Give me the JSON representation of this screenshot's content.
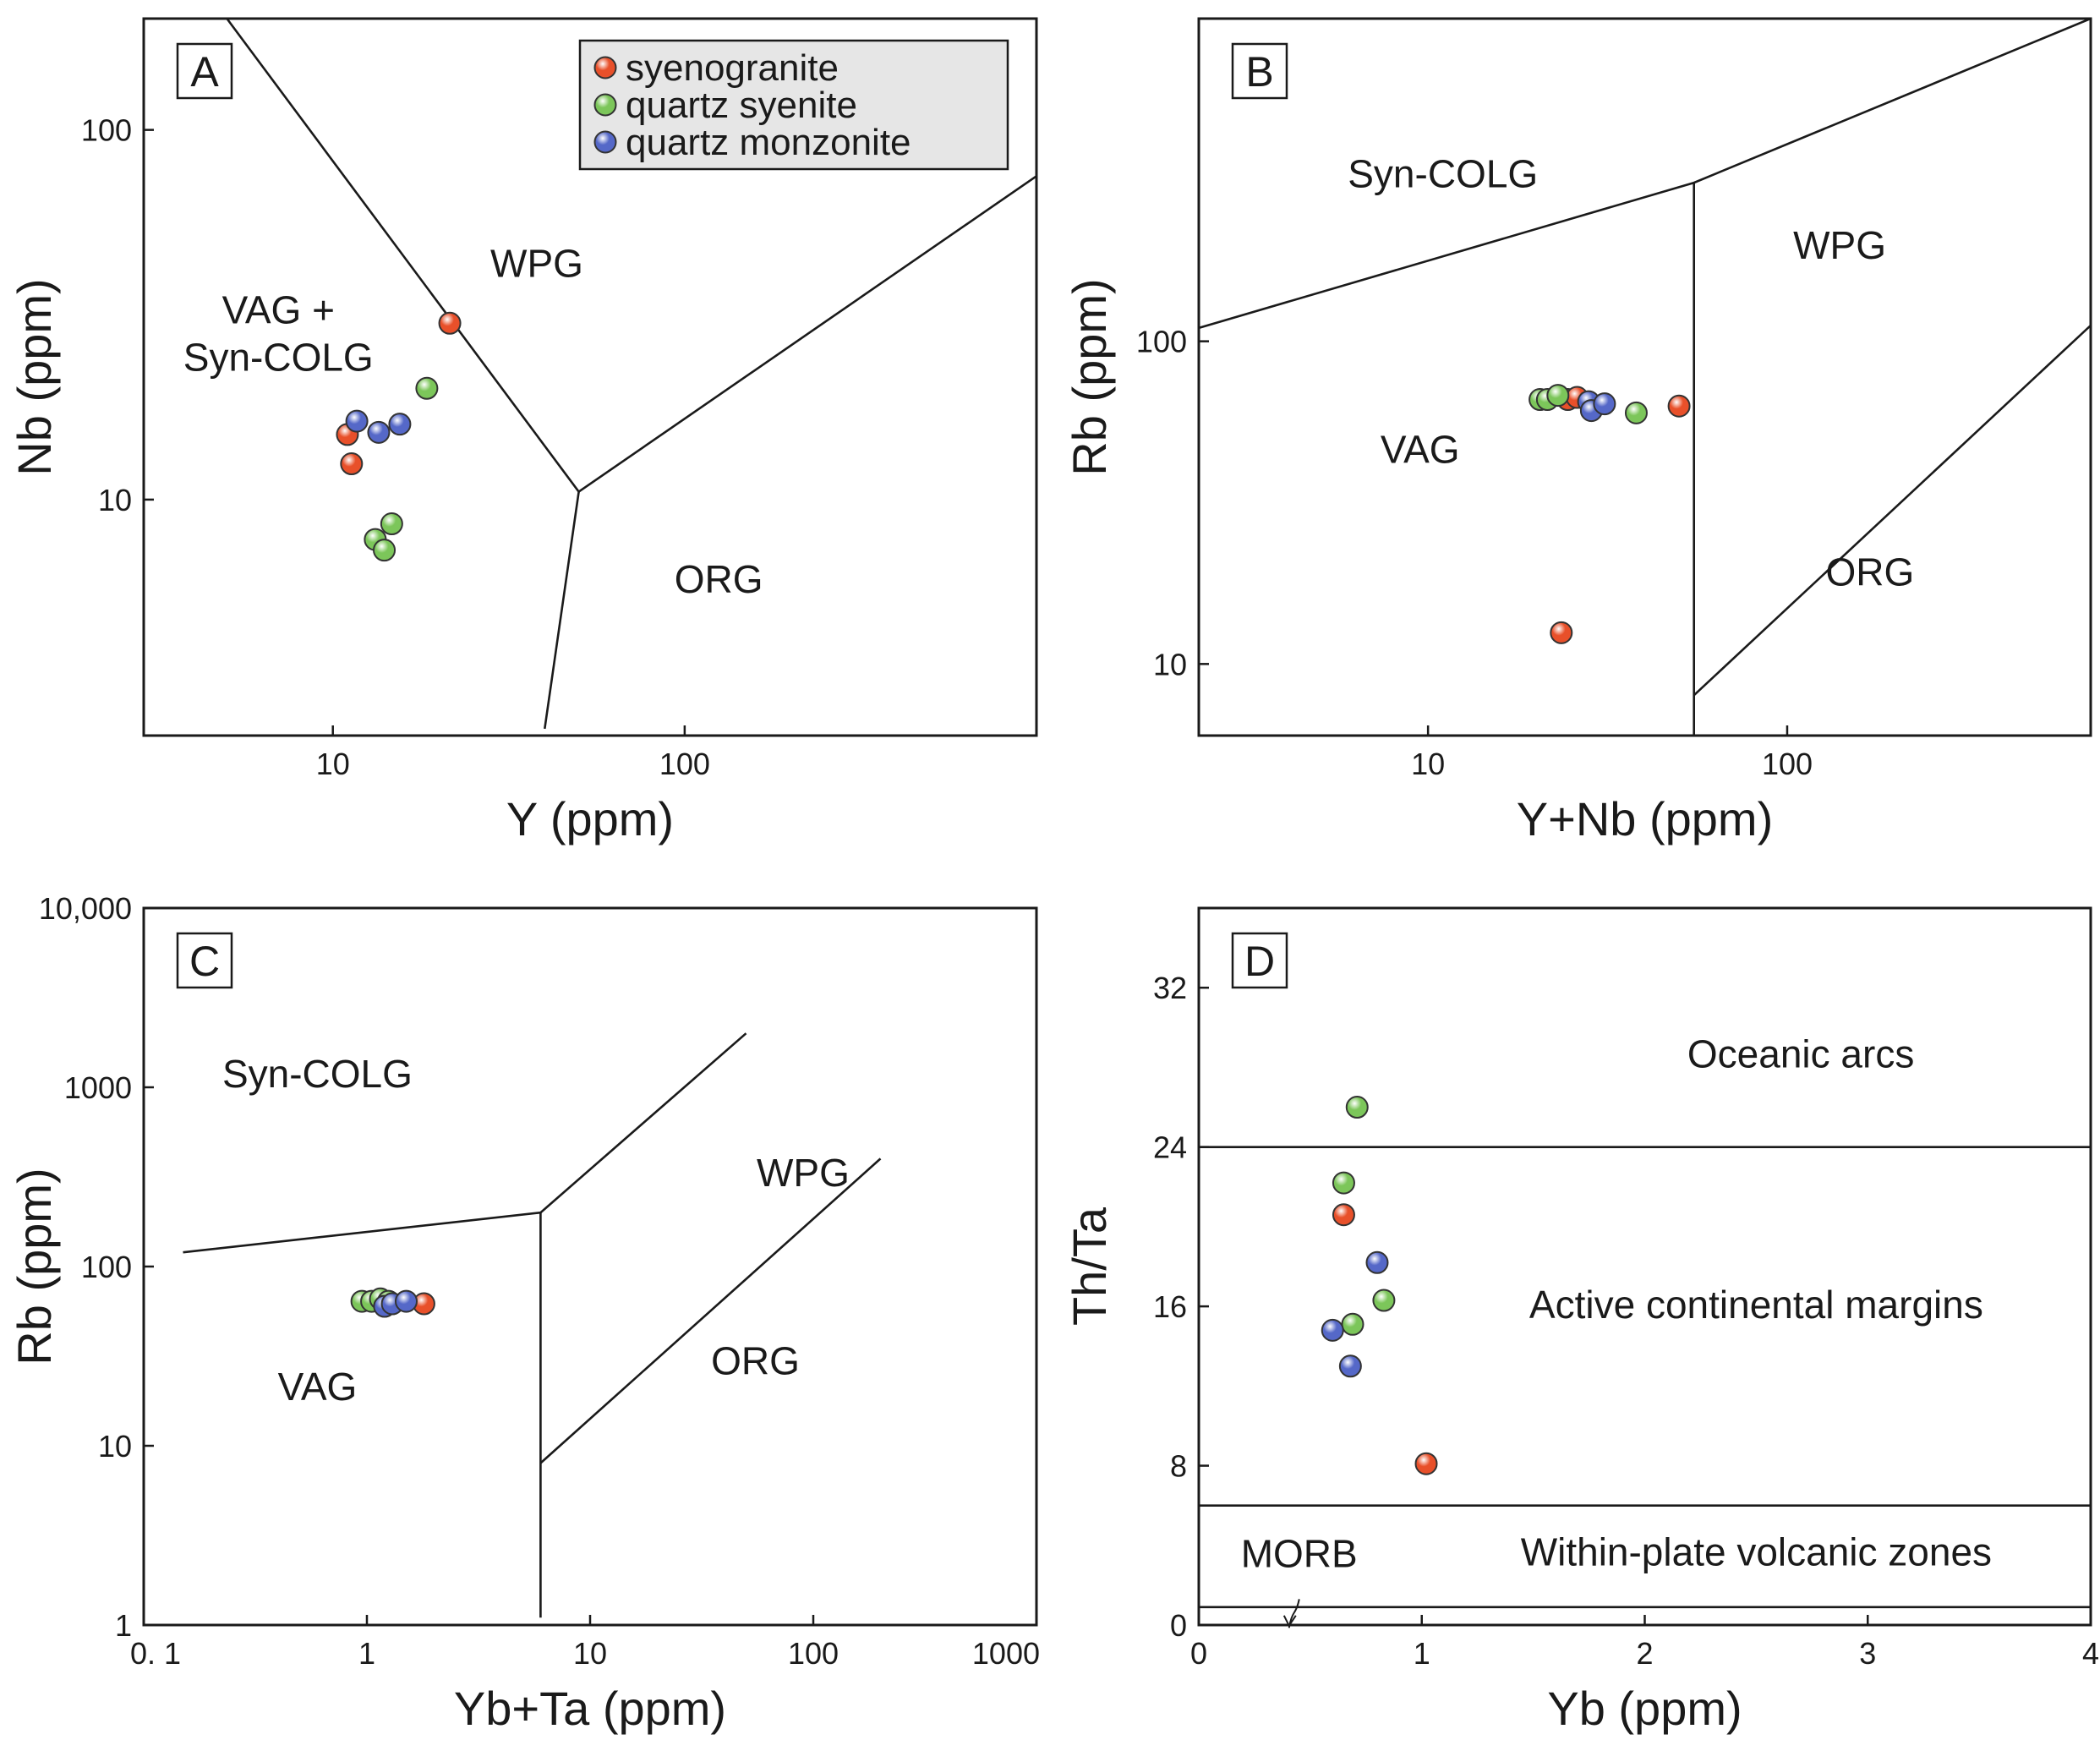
{
  "legend": [
    {
      "label": "syenogranite",
      "color": "#e8502a"
    },
    {
      "label": "quartz syenite",
      "color": "#7cc65a"
    },
    {
      "label": "quartz monzonite",
      "color": "#5568c8"
    }
  ],
  "chart_data": [
    {
      "type": "scatter",
      "panel": "A",
      "xlabel": "Y (ppm)",
      "ylabel": "Nb (ppm)",
      "xscale": "log",
      "yscale": "log",
      "xlim": [
        2.9,
        1000
      ],
      "ylim": [
        2.3,
        200
      ],
      "xticks": [
        {
          "v": 10,
          "label": "10"
        },
        {
          "v": 100,
          "label": "100"
        }
      ],
      "yticks": [
        {
          "v": 10,
          "label": "10"
        },
        {
          "v": 100,
          "label": "100"
        }
      ],
      "regions": [
        {
          "lines": [
            "VAG +",
            "Syn-COLG"
          ],
          "x": 7,
          "y": 30
        },
        {
          "lines": [
            "WPG"
          ],
          "x": 38,
          "y": 40
        },
        {
          "lines": [
            "ORG"
          ],
          "x": 125,
          "y": 5.6
        }
      ],
      "boundaries": [
        [
          [
            5,
            200
          ],
          [
            50,
            10.5
          ],
          [
            40,
            2.4
          ]
        ],
        [
          [
            50,
            10.5
          ],
          [
            1000,
            75
          ]
        ]
      ],
      "series": [
        {
          "name": "syenogranite",
          "points": [
            [
              11,
              15
            ],
            [
              11.3,
              12.5
            ],
            [
              21.5,
              30
            ]
          ]
        },
        {
          "name": "quartz syenite",
          "points": [
            [
              13.2,
              7.8
            ],
            [
              14,
              7.3
            ],
            [
              14.7,
              8.6
            ],
            [
              18.5,
              20
            ]
          ]
        },
        {
          "name": "quartz monzonite",
          "points": [
            [
              11.7,
              16.3
            ],
            [
              13.5,
              15.2
            ],
            [
              15.5,
              16
            ]
          ]
        }
      ]
    },
    {
      "type": "scatter",
      "panel": "B",
      "xlabel": "Y+Nb (ppm)",
      "ylabel": "Rb (ppm)",
      "xscale": "log",
      "yscale": "log",
      "xlim": [
        2.3,
        700
      ],
      "ylim": [
        6,
        1000
      ],
      "xticks": [
        {
          "v": 10,
          "label": "10"
        },
        {
          "v": 100,
          "label": "100"
        }
      ],
      "yticks": [
        {
          "v": 10,
          "label": "10"
        },
        {
          "v": 100,
          "label": "100"
        }
      ],
      "regions": [
        {
          "lines": [
            "Syn-COLG"
          ],
          "x": 11,
          "y": 300
        },
        {
          "lines": [
            "WPG"
          ],
          "x": 140,
          "y": 180
        },
        {
          "lines": [
            "VAG"
          ],
          "x": 9.5,
          "y": 42
        },
        {
          "lines": [
            "ORG"
          ],
          "x": 170,
          "y": 17.5
        }
      ],
      "boundaries": [
        [
          [
            2.3,
            110
          ],
          [
            55,
            310
          ],
          [
            700,
            1000
          ]
        ],
        [
          [
            55,
            310
          ],
          [
            55,
            6
          ]
        ],
        [
          [
            55,
            8
          ],
          [
            700,
            112
          ]
        ]
      ],
      "series": [
        {
          "name": "syenogranite",
          "points": [
            [
              24.5,
              66
            ],
            [
              26,
              67
            ],
            [
              50,
              63
            ],
            [
              23.5,
              12.5
            ]
          ]
        },
        {
          "name": "quartz syenite",
          "points": [
            [
              20.5,
              66
            ],
            [
              21.5,
              66
            ],
            [
              23,
              68
            ],
            [
              38,
              60
            ]
          ]
        },
        {
          "name": "quartz monzonite",
          "points": [
            [
              28,
              65
            ],
            [
              28.5,
              61
            ],
            [
              31,
              64
            ]
          ]
        }
      ]
    },
    {
      "type": "scatter",
      "panel": "C",
      "xlabel": "Yb+Ta (ppm)",
      "ylabel": "Rb (ppm)",
      "xscale": "log",
      "yscale": "log",
      "xlim": [
        0.1,
        1000
      ],
      "ylim": [
        1,
        10000
      ],
      "xticks": [
        {
          "v": 0.1,
          "label": "0. 1"
        },
        {
          "v": 1,
          "label": "1"
        },
        {
          "v": 10,
          "label": "10"
        },
        {
          "v": 100,
          "label": "100"
        },
        {
          "v": 1000,
          "label": "1000"
        }
      ],
      "yticks": [
        {
          "v": 1,
          "label": "1"
        },
        {
          "v": 10,
          "label": "10"
        },
        {
          "v": 100,
          "label": "100"
        },
        {
          "v": 1000,
          "label": "1000"
        },
        {
          "v": 10000,
          "label": "10,000"
        }
      ],
      "regions": [
        {
          "lines": [
            "Syn-COLG"
          ],
          "x": 0.6,
          "y": 1000
        },
        {
          "lines": [
            "WPG"
          ],
          "x": 90,
          "y": 280
        },
        {
          "lines": [
            "VAG"
          ],
          "x": 0.6,
          "y": 18
        },
        {
          "lines": [
            "ORG"
          ],
          "x": 55,
          "y": 25
        }
      ],
      "boundaries": [
        [
          [
            0.15,
            120
          ],
          [
            6,
            200
          ],
          [
            50,
            2000
          ]
        ],
        [
          [
            6,
            200
          ],
          [
            6,
            1.1
          ]
        ],
        [
          [
            6,
            8
          ],
          [
            200,
            400
          ]
        ]
      ],
      "series": [
        {
          "name": "syenogranite",
          "points": [
            [
              1.3,
              62
            ],
            [
              1.8,
              62
            ]
          ]
        },
        {
          "name": "quartz syenite",
          "points": [
            [
              0.95,
              64
            ],
            [
              1.05,
              64
            ],
            [
              1.15,
              66
            ],
            [
              1.25,
              64
            ]
          ]
        },
        {
          "name": "quartz monzonite",
          "points": [
            [
              1.2,
              60
            ],
            [
              1.3,
              62
            ],
            [
              1.5,
              64
            ]
          ]
        }
      ]
    },
    {
      "type": "scatter",
      "panel": "D",
      "xlabel": "Yb (ppm)",
      "ylabel": "Th/Ta",
      "xscale": "linear",
      "yscale": "linear",
      "xlim": [
        0,
        4
      ],
      "ylim": [
        0,
        36
      ],
      "xticks": [
        {
          "v": 0,
          "label": "0"
        },
        {
          "v": 1,
          "label": "1"
        },
        {
          "v": 2,
          "label": "2"
        },
        {
          "v": 3,
          "label": "3"
        },
        {
          "v": 4,
          "label": "4"
        }
      ],
      "yticks": [
        {
          "v": 0,
          "label": "0"
        },
        {
          "v": 8,
          "label": "8"
        },
        {
          "v": 16,
          "label": "16"
        },
        {
          "v": 24,
          "label": "24"
        },
        {
          "v": 32,
          "label": "32"
        }
      ],
      "regions": [
        {
          "lines": [
            "Oceanic arcs"
          ],
          "x": 2.7,
          "y": 28
        },
        {
          "lines": [
            "Active continental margins"
          ],
          "x": 2.5,
          "y": 15.4
        },
        {
          "lines": [
            "MORB"
          ],
          "x": 0.45,
          "y": 2.9
        },
        {
          "lines": [
            "Within-plate volcanic zones"
          ],
          "x": 2.5,
          "y": 3
        }
      ],
      "boundaries": [
        [
          [
            0,
            24
          ],
          [
            4,
            24
          ]
        ],
        [
          [
            0,
            6
          ],
          [
            4,
            6
          ]
        ],
        [
          [
            0,
            0.9
          ],
          [
            4,
            0.9
          ]
        ]
      ],
      "series": [
        {
          "name": "syenogranite",
          "points": [
            [
              0.65,
              20.6
            ],
            [
              1.02,
              8.1
            ]
          ]
        },
        {
          "name": "quartz syenite",
          "points": [
            [
              0.71,
              26
            ],
            [
              0.65,
              22.2
            ],
            [
              0.83,
              16.3
            ],
            [
              0.69,
              15.1
            ]
          ]
        },
        {
          "name": "quartz monzonite",
          "points": [
            [
              0.8,
              18.2
            ],
            [
              0.6,
              14.8
            ],
            [
              0.68,
              13
            ]
          ]
        }
      ]
    }
  ]
}
